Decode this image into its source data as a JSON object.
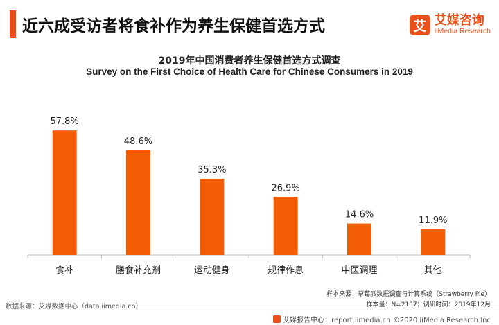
{
  "header": {
    "headline": "近六成受访者将食补作为养生保健首选方式",
    "brand_glyph": "艾",
    "brand_cn": "艾媒咨询",
    "brand_en": "iiMedia Research",
    "accent_color": "#e8511c"
  },
  "chart_data": {
    "type": "bar",
    "title": "2019年中国消费者养生保健首选方式调查",
    "subtitle": "Survey on the First Choice of Health Care for Chinese Consumers in 2019",
    "categories": [
      "食补",
      "膳食补充剂",
      "运动健身",
      "规律作息",
      "中医调理",
      "其他"
    ],
    "values": [
      57.8,
      48.6,
      35.3,
      26.9,
      14.6,
      11.9
    ],
    "value_labels": [
      "57.8%",
      "48.6%",
      "35.3%",
      "26.9%",
      "14.6%",
      "11.9%"
    ],
    "unit": "%",
    "ylim": [
      0,
      63
    ],
    "bar_color": "#f25c05",
    "grid": false,
    "legend": "none"
  },
  "notes": {
    "sample_source": "样本来源：草莓派数据调查与计算系统（Strawberry Pie）",
    "sample_size": "样本量：N=2187；调研时间：2019年12月"
  },
  "data_source": "数据来源：艾媒数据中心（data.iimedia.cn）",
  "footer": {
    "text": "艾媒报告中心：report.iimedia.cn ©2020  iiMedia Research Inc"
  }
}
